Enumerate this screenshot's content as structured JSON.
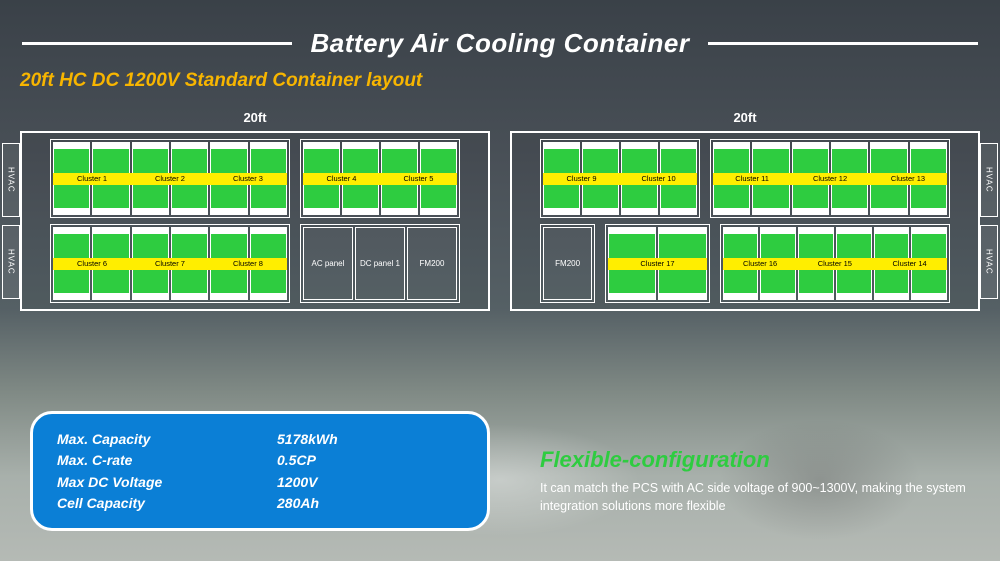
{
  "title": "Battery Air Cooling Container",
  "subtitle": "20ft HC DC 1200V Standard Container layout",
  "containers": {
    "left": {
      "width_label": "20ft",
      "hvac_label": "HVAC",
      "hvac_positions": [
        "left-top",
        "left-bot"
      ],
      "rows": [
        [
          {
            "type": "cluster_group",
            "span": "double",
            "cells": 6,
            "clusters": [
              "Cluster 1",
              "Cluster 2",
              "Cluster 3"
            ]
          },
          {
            "type": "cluster_group",
            "span": "single",
            "cells": 4,
            "clusters": [
              "Cluster 4",
              "Cluster 5"
            ]
          }
        ],
        [
          {
            "type": "cluster_group",
            "span": "double",
            "cells": 6,
            "clusters": [
              "Cluster 6",
              "Cluster 7",
              "Cluster 8"
            ]
          },
          {
            "type": "panel_group",
            "span": "single",
            "panels": [
              "AC panel",
              "DC panel 1",
              "FM200"
            ]
          }
        ]
      ]
    },
    "right": {
      "width_label": "20ft",
      "hvac_label": "HVAC",
      "hvac_positions": [
        "right-top",
        "right-bot"
      ],
      "rows": [
        [
          {
            "type": "cluster_group",
            "span": "single",
            "cells": 4,
            "clusters": [
              "Cluster 9",
              "Cluster 10"
            ]
          },
          {
            "type": "cluster_group",
            "span": "double",
            "cells": 6,
            "clusters": [
              "Cluster 11",
              "Cluster 12",
              "Cluster 13"
            ]
          }
        ],
        [
          {
            "type": "panel_group",
            "span": "tiny",
            "panels": [
              "FM200"
            ]
          },
          {
            "type": "cluster_group",
            "span": "tiny1",
            "cells": 2,
            "clusters": [
              "Cluster 17"
            ]
          },
          {
            "type": "cluster_group",
            "span": "double",
            "cells": 6,
            "clusters": [
              "Cluster 16",
              "Cluster 15",
              "Cluster 14"
            ]
          }
        ]
      ]
    }
  },
  "specs": [
    {
      "label": "Max. Capacity",
      "value": "5178kWh"
    },
    {
      "label": "Max. C-rate",
      "value": "0.5CP"
    },
    {
      "label": "Max DC Voltage",
      "value": "1200V"
    },
    {
      "label": "Cell Capacity",
      "value": "280Ah"
    }
  ],
  "flexible": {
    "title": "Flexible-configuration",
    "body": "It can match the PCS with AC side voltage of 900~1300V, making the system integration solutions more flexible"
  },
  "style": {
    "colors": {
      "cell_green": "#2ecc40",
      "cluster_yellow": "#ffee00",
      "subtitle_orange": "#f7b500",
      "spec_box_blue": "#0b7fd6",
      "flexible_green": "#2ecc40",
      "border_white": "#ffffff"
    }
  }
}
